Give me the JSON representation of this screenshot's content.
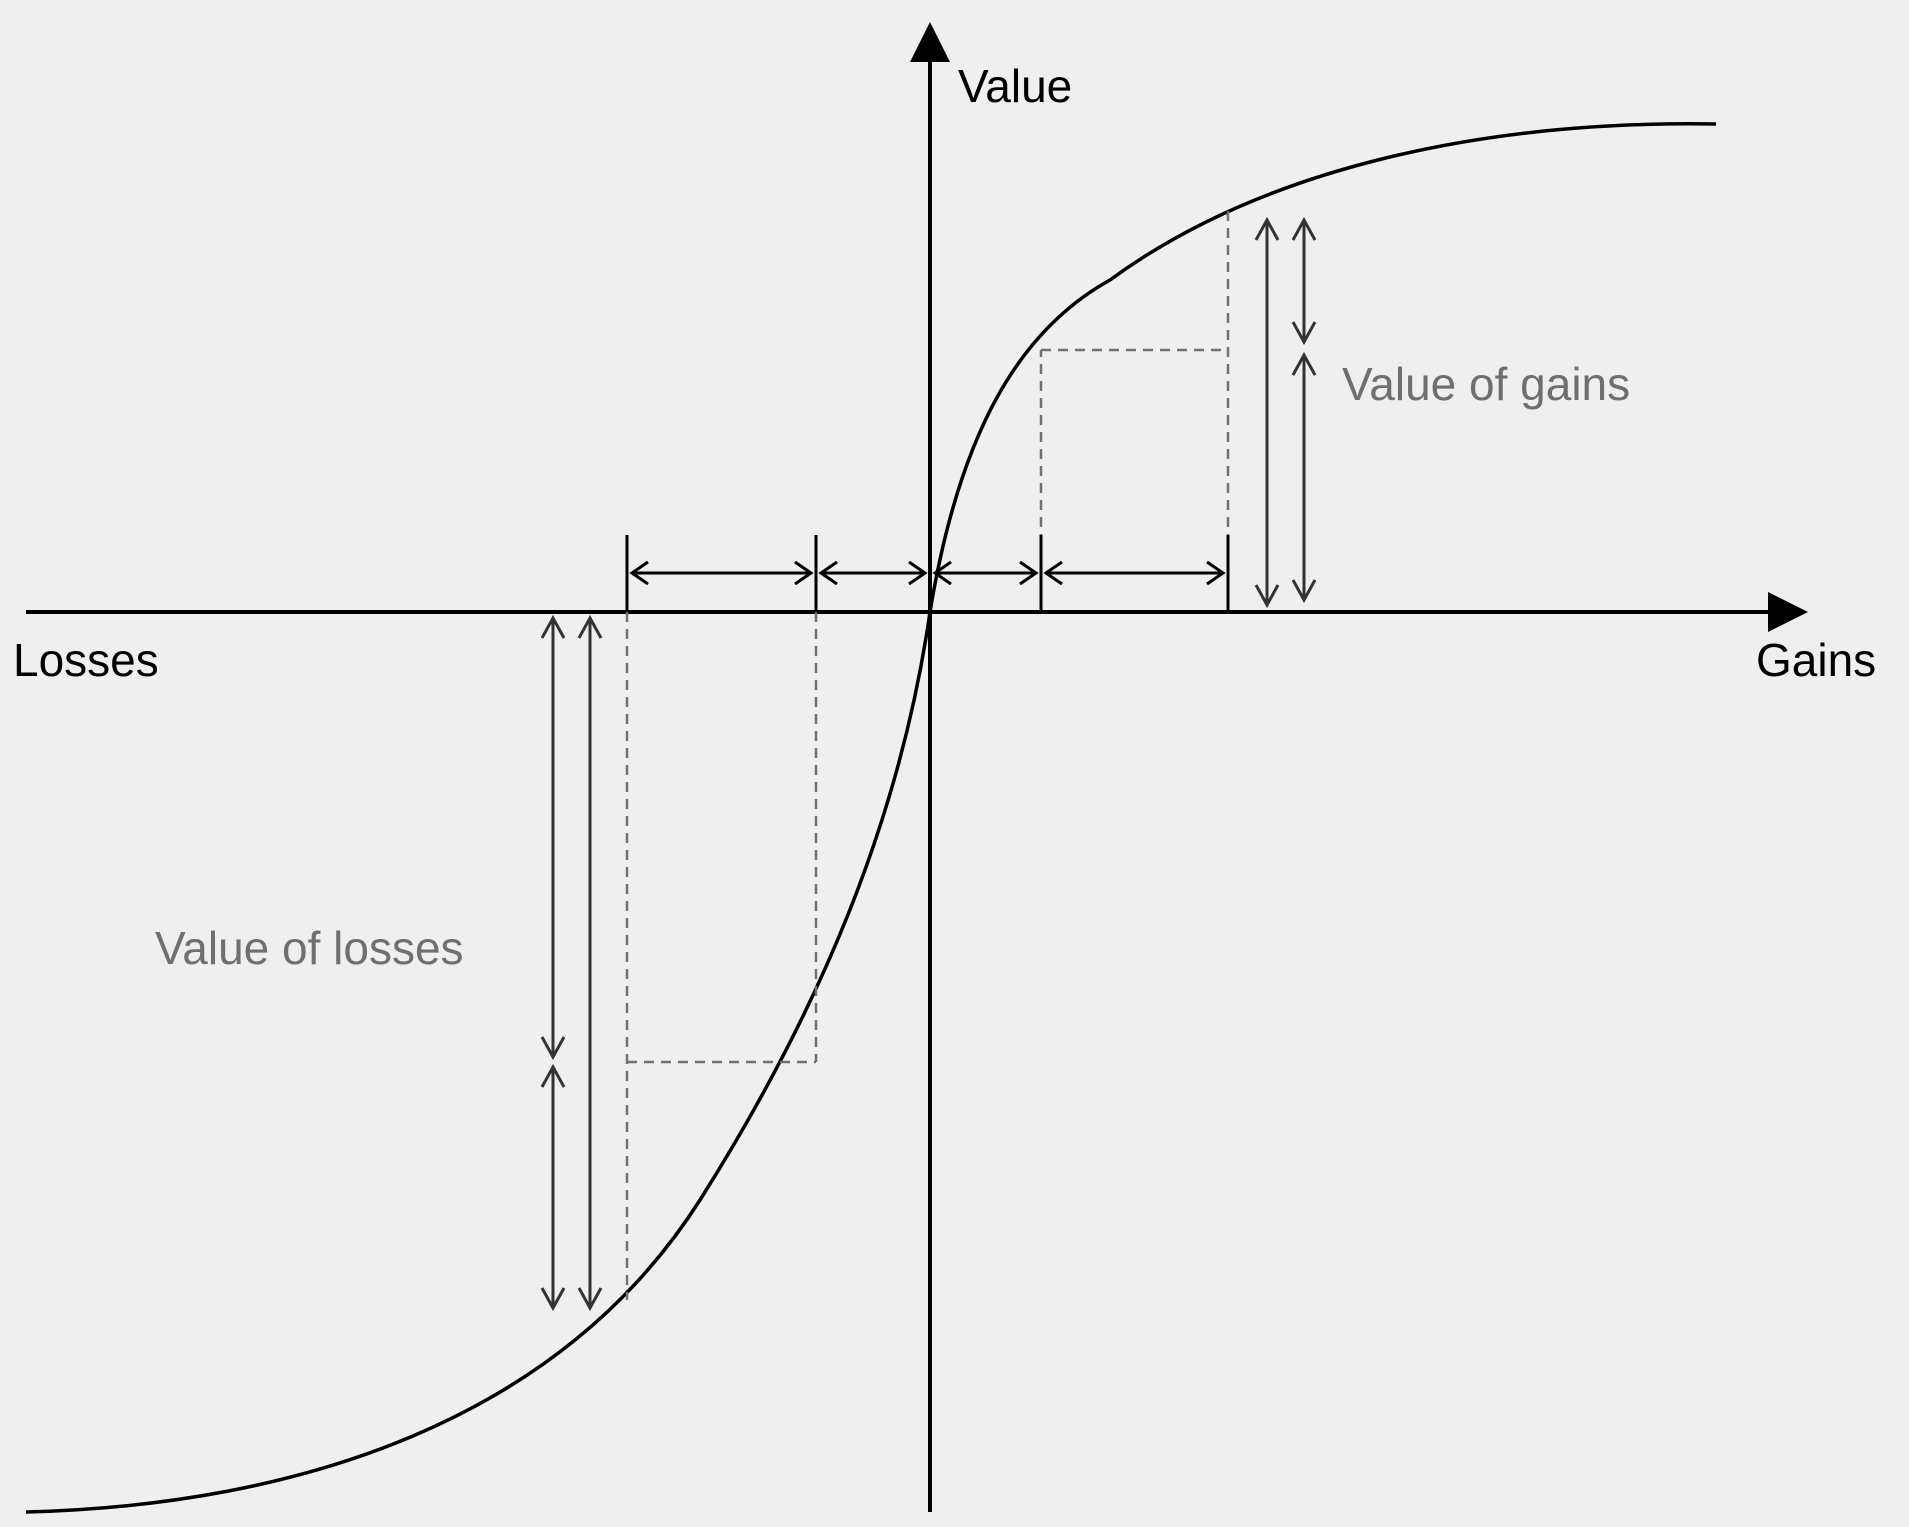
{
  "labels": {
    "y_axis": "Value",
    "x_axis_negative": "Losses",
    "x_axis_positive": "Gains",
    "gains_annotation": "Value of gains",
    "losses_annotation": "Value of losses"
  },
  "colors": {
    "background": "#efefef",
    "axis": "#000000",
    "curve": "#000000",
    "dashed_guides": "#707070",
    "arrows": "#333333",
    "annotation_text": "#6f6f6f"
  }
}
